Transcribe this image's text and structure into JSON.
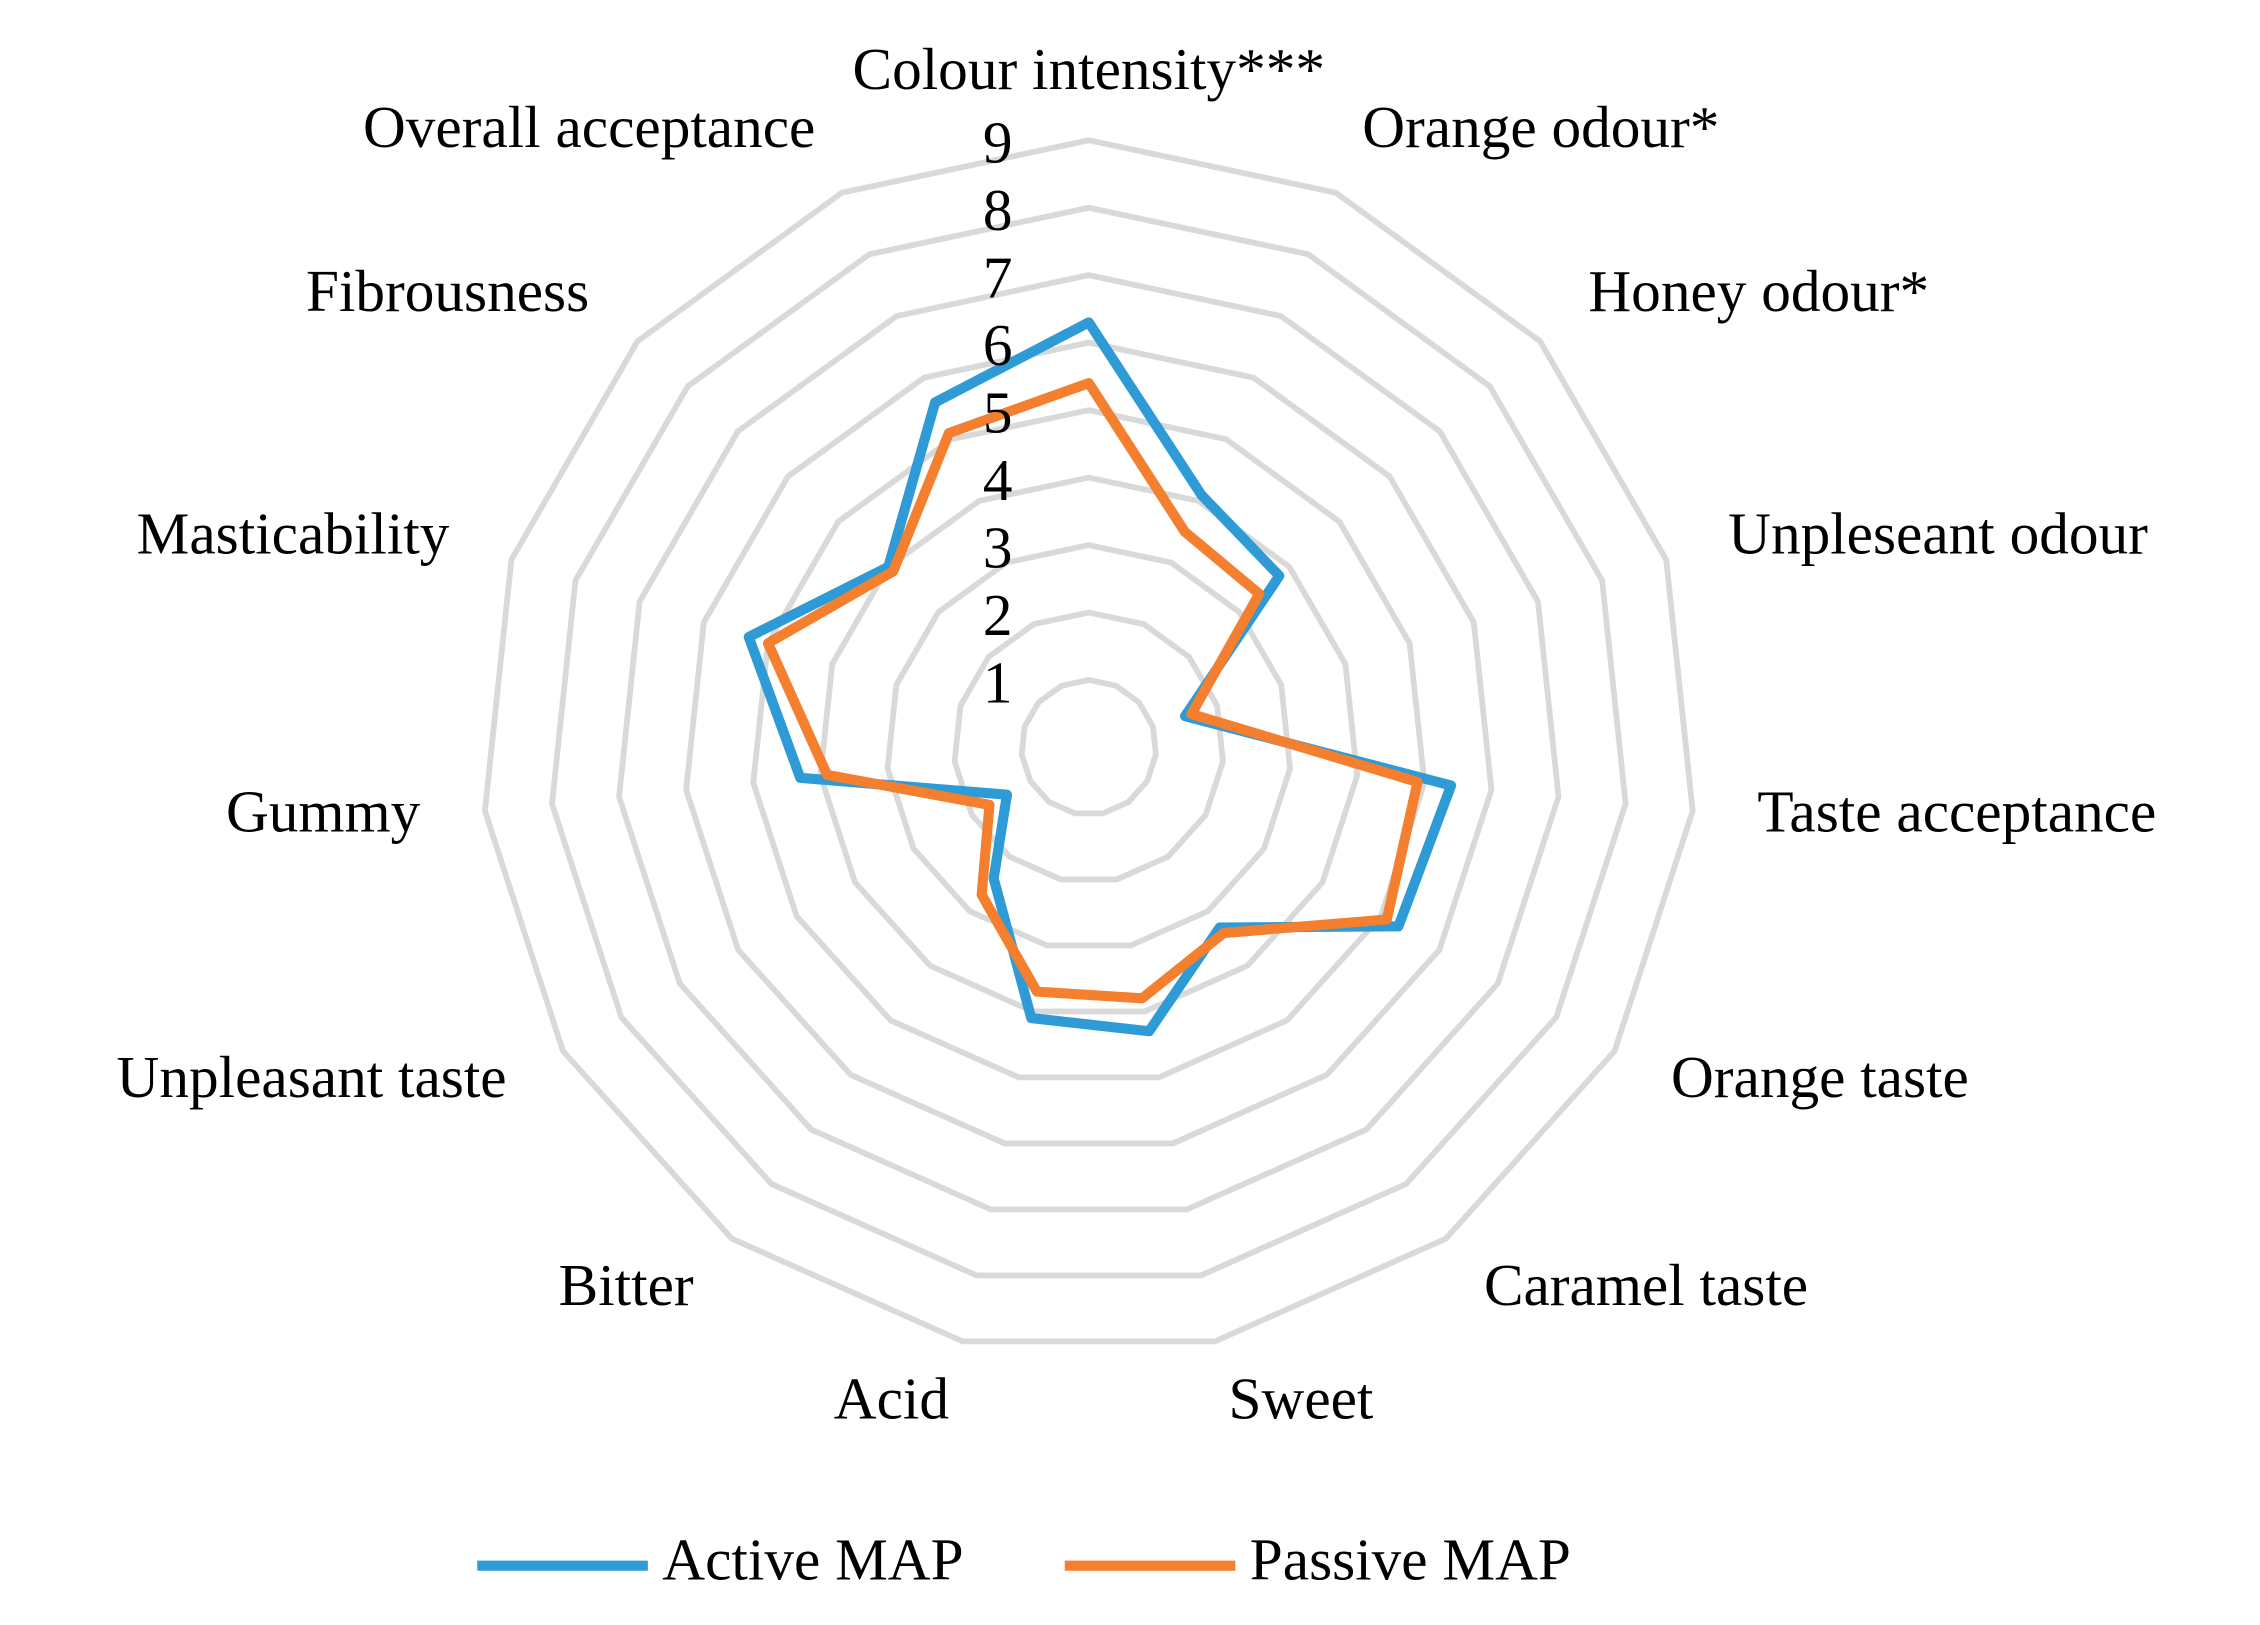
{
  "chart_data": {
    "type": "radar",
    "categories": [
      "Colour intensity***",
      "Orange odour*",
      "Honey odour*",
      "Unpleseant odour",
      "Taste acceptance",
      "Orange taste",
      "Caramel taste",
      "Sweet",
      "Acid",
      "Bitter",
      "Unpleasant taste",
      "Gummy",
      "Masticability",
      "Fibrousness",
      "Overall acceptance"
    ],
    "series": [
      {
        "name": "Active MAP",
        "color": "#2e9bd6",
        "values": [
          6.3,
          4.1,
          3.8,
          1.5,
          5.4,
          5.3,
          3.3,
          4.3,
          4.1,
          2.4,
          1.4,
          4.3,
          5.3,
          4.0,
          5.6
        ]
      },
      {
        "name": "Passive MAP",
        "color": "#f47f2f",
        "values": [
          5.4,
          3.5,
          3.4,
          1.6,
          4.9,
          5.1,
          3.4,
          3.8,
          3.7,
          2.7,
          1.7,
          3.9,
          5.0,
          3.9,
          5.1
        ]
      }
    ],
    "ylim": [
      0,
      9
    ],
    "yticks": [
      1,
      2,
      3,
      4,
      5,
      6,
      7,
      8,
      9
    ],
    "grid": true,
    "legend": "bottom"
  }
}
